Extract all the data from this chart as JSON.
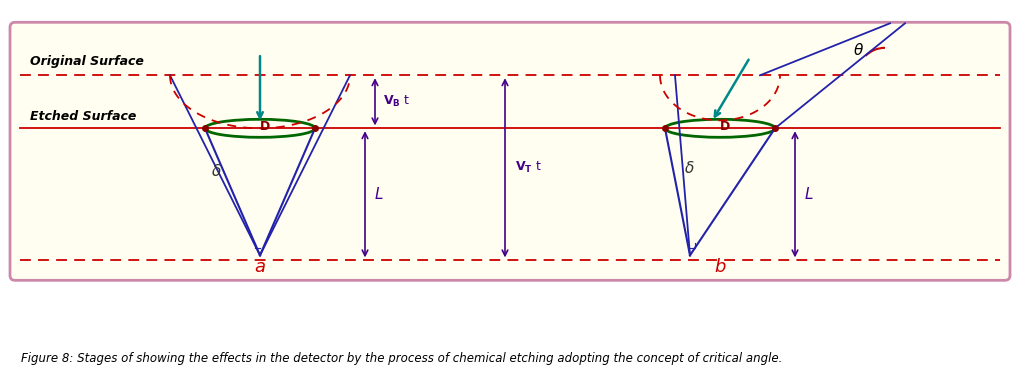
{
  "fig_width": 10.31,
  "fig_height": 3.91,
  "bg_color": "#fffef0",
  "border_color": "#cc88aa",
  "caption": "Figure 8: Stages of showing the effects in the detector by the process of chemical etching adopting the concept of critical angle.",
  "label_original": "Original Surface",
  "label_etched": "Etched Surface",
  "label_a": "a",
  "label_b": "b",
  "label_D": "D",
  "label_delta": "δ",
  "label_theta": "θ",
  "label_VBt": "V_B t",
  "label_VTt": "V_T t",
  "label_L": "L",
  "red": "#cc0000",
  "blue": "#2222aa",
  "green": "#006600",
  "teal": "#008888",
  "purple": "#440088",
  "darkred": "#880000"
}
